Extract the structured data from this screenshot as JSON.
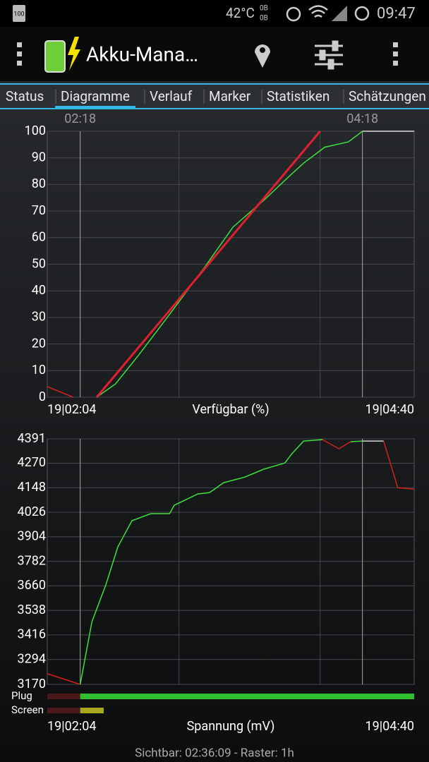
{
  "status_bar": {
    "battery": "100",
    "temperature": "42°C",
    "net_up": "0B",
    "net_down": "0B",
    "time": "09:47"
  },
  "app_bar": {
    "title": "Akku-Mana…"
  },
  "tabs": [
    "Status",
    "Diagramme",
    "Verlauf",
    "Marker",
    "Statistiken",
    "Schätzungen"
  ],
  "active_tab": 1,
  "footer": "Sichtbar: 02:36:09 - Raster: 1h",
  "chart_data": [
    {
      "type": "line",
      "title": "Verfügbar (%)",
      "xlim": [
        "19|02:04",
        "19|04:40"
      ],
      "markers": [
        "02:18",
        "04:18"
      ],
      "ylim": [
        0,
        100
      ],
      "yticks": [
        0,
        10,
        20,
        30,
        40,
        50,
        60,
        70,
        80,
        90,
        100
      ],
      "grid": true,
      "series": [
        {
          "color": "#d42020",
          "x": [
            "19|02:04",
            "19|02:15"
          ],
          "values": [
            4,
            0
          ]
        },
        {
          "color": "#3ee03e",
          "x": [
            "19|02:25",
            "19|02:33",
            "19|02:43",
            "19|02:55",
            "19|03:11",
            "19|03:23",
            "19|03:36",
            "19|03:48",
            "19|03:53",
            "19|04:02",
            "19|04:12",
            "19|04:18"
          ],
          "values": [
            0,
            5,
            16,
            30,
            49,
            64,
            74,
            84,
            88,
            94,
            96,
            100
          ]
        },
        {
          "color": "#d8d8d8",
          "x": [
            "19|04:18",
            "19|04:40"
          ],
          "values": [
            100,
            100
          ]
        },
        {
          "color": "#e02030",
          "width": 3,
          "x": [
            "19|02:25",
            "19|04:00"
          ],
          "values": [
            0,
            100
          ]
        }
      ]
    },
    {
      "type": "line",
      "title": "Spannung (mV)",
      "xlim": [
        "19|02:04",
        "19|04:40"
      ],
      "ylim": [
        3170,
        4391
      ],
      "yticks": [
        3170,
        3294,
        3416,
        3538,
        3660,
        3782,
        3904,
        4026,
        4148,
        4270,
        4391
      ],
      "grid": true,
      "series": [
        {
          "color": "#d42020",
          "x": [
            "19|02:04",
            "19|02:18"
          ],
          "values": [
            3223,
            3170
          ]
        },
        {
          "color": "#3ee03e",
          "x": [
            "19|02:18",
            "19|02:23",
            "19|02:29",
            "19|02:34",
            "19|02:40",
            "19|02:48",
            "19|02:56",
            "19|02:58",
            "19|03:08",
            "19|03:13",
            "19|03:19",
            "19|03:28",
            "19|03:36",
            "19|03:45",
            "19|03:48",
            "19|03:53",
            "19|04:01"
          ],
          "values": [
            3170,
            3482,
            3668,
            3854,
            3984,
            4019,
            4019,
            4061,
            4117,
            4124,
            4173,
            4201,
            4240,
            4271,
            4317,
            4380,
            4387
          ]
        },
        {
          "color": "#d42020",
          "x": [
            "19|04:01",
            "19|04:08",
            "19|04:13"
          ],
          "values": [
            4387,
            4342,
            4377
          ]
        },
        {
          "color": "#3ee03e",
          "x": [
            "19|04:13",
            "19|04:18"
          ],
          "values": [
            4377,
            4380
          ]
        },
        {
          "color": "#d8d8d8",
          "x": [
            "19|04:18",
            "19|04:27"
          ],
          "values": [
            4380,
            4380
          ]
        },
        {
          "color": "#d42020",
          "x": [
            "19|04:27",
            "19|04:33",
            "19|04:40"
          ],
          "values": [
            4380,
            4148,
            4141
          ]
        }
      ],
      "states": [
        {
          "label": "Plug",
          "segments": [
            {
              "from": "19|02:04",
              "to": "19|02:18",
              "color": "#4a1818"
            },
            {
              "from": "19|02:18",
              "to": "19|04:40",
              "color": "#2fbf2f"
            }
          ]
        },
        {
          "label": "Screen",
          "segments": [
            {
              "from": "19|02:04",
              "to": "19|02:18",
              "color": "#4a1818"
            },
            {
              "from": "19|02:18",
              "to": "19|02:28",
              "color": "#a8a820"
            }
          ]
        }
      ]
    }
  ]
}
